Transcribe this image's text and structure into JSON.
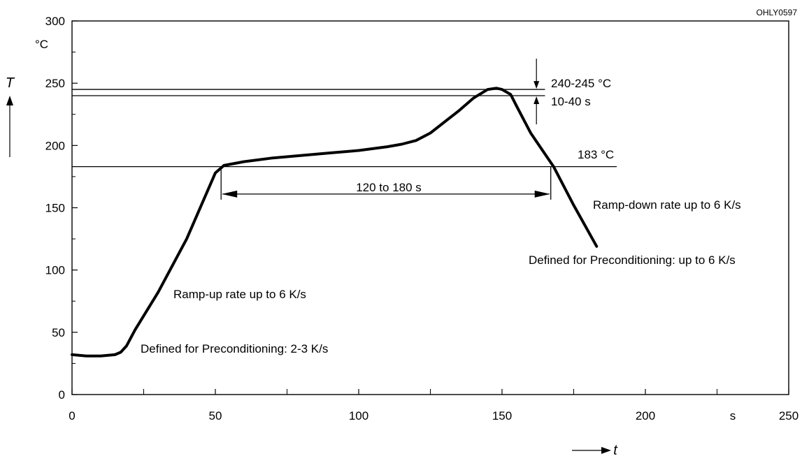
{
  "chart_data": {
    "type": "line",
    "code_label": "OHLY0597",
    "x_axis": {
      "symbol": "t",
      "unit": "s",
      "range": [
        0,
        250
      ],
      "tick_labels": [
        "0",
        "50",
        "100",
        "150",
        "200",
        "250"
      ]
    },
    "y_axis": {
      "symbol": "T",
      "unit": "°C",
      "range": [
        0,
        300
      ],
      "tick_labels": [
        "0",
        "50",
        "100",
        "150",
        "200",
        "250",
        "300"
      ]
    },
    "grid": false,
    "series": [
      {
        "x": [
          0,
          5,
          10,
          15,
          17,
          19,
          22,
          30,
          40,
          50,
          53,
          60,
          70,
          80,
          90,
          100,
          110,
          115,
          120,
          125,
          130,
          135,
          140,
          145,
          148,
          150,
          153,
          155,
          160,
          168,
          175,
          183
        ],
        "y": [
          32,
          31,
          31,
          32,
          34,
          39,
          52,
          82,
          125,
          178,
          184,
          187,
          190,
          192,
          194,
          196,
          199,
          201,
          204,
          210,
          219,
          228,
          238,
          245,
          246,
          245,
          241,
          232,
          210,
          183,
          152,
          119
        ]
      }
    ],
    "reference_lines": [
      {
        "y": 245,
        "x_range": [
          0,
          165
        ]
      },
      {
        "y": 240,
        "x_range": [
          0,
          165
        ]
      },
      {
        "y": 183,
        "x_range": [
          0,
          190
        ],
        "label": "183 °C"
      }
    ],
    "dimension_markers": [
      {
        "label": "120 to 180 s",
        "x_start": 52,
        "x_end": 167,
        "y": 161
      },
      {
        "label": "240-245 °C",
        "x": 162
      },
      {
        "label": "10-40 s",
        "x": 162
      }
    ],
    "annotations": [
      "Ramp-up rate up to 6 K/s",
      "Defined for Preconditioning: 2-3 K/s",
      "Ramp-down rate up to 6 K/s",
      "Defined for Preconditioning: up to 6 K/s"
    ]
  }
}
